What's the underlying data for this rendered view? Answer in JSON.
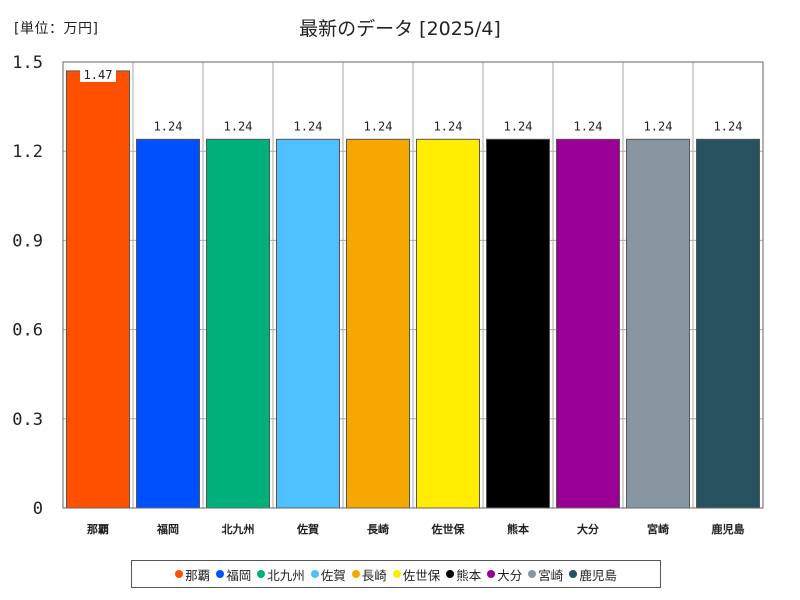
{
  "unit_label": "[単位：万円]",
  "chart_data": {
    "type": "bar",
    "title": "最新のデータ [2025/4]",
    "categories": [
      "那覇",
      "福岡",
      "北九州",
      "佐賀",
      "長崎",
      "佐世保",
      "熊本",
      "大分",
      "宮崎",
      "鹿児島"
    ],
    "values": [
      1.47,
      1.24,
      1.24,
      1.24,
      1.24,
      1.24,
      1.24,
      1.24,
      1.24,
      1.24
    ],
    "data_labels": [
      "1.47",
      "1.24",
      "1.24",
      "1.24",
      "1.24",
      "1.24",
      "1.24",
      "1.24",
      "1.24",
      "1.24"
    ],
    "colors": [
      "#ff5000",
      "#0050ff",
      "#00b07a",
      "#4fc0ff",
      "#f5a800",
      "#ffec00",
      "#000000",
      "#9a0096",
      "#8896a2",
      "#25525e"
    ],
    "ylim": [
      0,
      1.5
    ],
    "yticks": [
      0,
      0.3,
      0.6,
      0.9,
      1.2,
      1.5
    ],
    "ytick_labels": [
      "0",
      "0.3",
      "0.6",
      "0.9",
      "1.2",
      "1.5"
    ],
    "grid": true,
    "legend_position": "bottom"
  }
}
